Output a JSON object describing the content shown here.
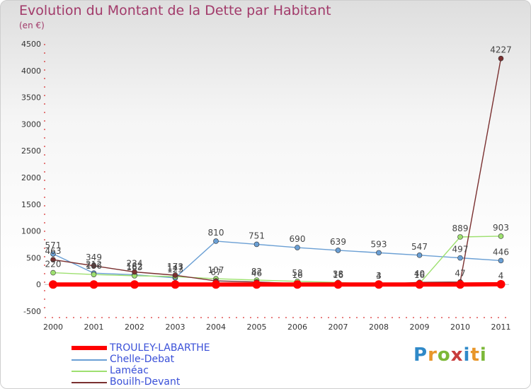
{
  "title": "Evolution du Montant de la Dette par Habitant",
  "subtitle": "(en €)",
  "brand": {
    "text": "Proxiti",
    "letter_colors": [
      "#2f89c8",
      "#e8962a",
      "#7cb838",
      "#c83d3d",
      "#2f89c8",
      "#e8962a",
      "#7cb838"
    ]
  },
  "chart_data": {
    "type": "line",
    "title": "Evolution du Montant de la Dette par Habitant",
    "subtitle": "(en €)",
    "xlabel": "",
    "ylabel": "",
    "ylim": [
      -500,
      4500
    ],
    "yticks": [
      -500,
      0,
      500,
      1000,
      1500,
      2000,
      2500,
      3000,
      3500,
      4000,
      4500
    ],
    "x": [
      "2000",
      "2001",
      "2002",
      "2003",
      "2004",
      "2005",
      "2006",
      "2007",
      "2008",
      "2009",
      "2010",
      "2011"
    ],
    "grid": false,
    "legend_position": "bottom-left",
    "series": [
      {
        "name": "TROULEY-LABARTHE",
        "color": "#ff0000",
        "values": [
          0,
          0,
          0,
          0,
          0,
          0,
          0,
          0,
          0,
          0,
          0,
          4
        ],
        "labels": [
          "",
          "",
          "",
          "",
          "",
          "",
          "",
          "",
          "",
          "",
          "",
          "4"
        ]
      },
      {
        "name": "Chelle-Debat",
        "color": "#6a9fd4",
        "values": [
          571,
          212,
          182,
          123,
          810,
          751,
          690,
          639,
          593,
          547,
          497,
          446
        ],
        "labels": [
          "571",
          "212",
          "182",
          "123",
          "810",
          "751",
          "690",
          "639",
          "593",
          "547",
          "497",
          "446"
        ]
      },
      {
        "name": "Laméac",
        "color": "#9ee070",
        "values": [
          220,
          186,
          163,
          147,
          107,
          82,
          58,
          38,
          3,
          16,
          889,
          903
        ],
        "labels": [
          "220",
          "186",
          "163",
          "147",
          "107",
          "82",
          "58",
          "38",
          "3",
          "16",
          "889",
          "903"
        ]
      },
      {
        "name": "Bouilh-Devant",
        "color": "#7a3030",
        "values": [
          463,
          349,
          234,
          173,
          67,
          46,
          16,
          16,
          4,
          40,
          47,
          4227
        ],
        "labels": [
          "463",
          "349",
          "234",
          "173",
          "67",
          "46",
          "16",
          "16",
          "4",
          "40",
          "47",
          "4227"
        ]
      }
    ]
  }
}
